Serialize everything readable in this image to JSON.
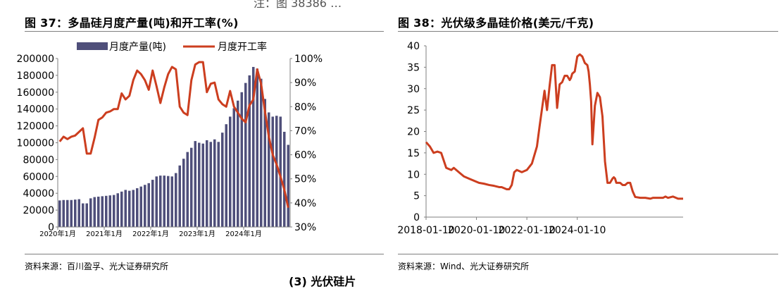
{
  "top_cut_text": "注：图 38386 …",
  "bottom_cut_text": "(3) 光伏硅片",
  "left": {
    "title": "图 37：多晶硅月度产量(吨)和开工率(%)",
    "source": "资料来源：百川盈孚、光大证券研究所"
  },
  "right": {
    "title": "图 38：光伏级多晶硅价格(美元/千克)",
    "source": "资料来源：Wind、光大证券研究所"
  },
  "colors": {
    "bar": "#4f4f7a",
    "line": "#cc3e1f",
    "axis": "#7f7f7f"
  },
  "chart_data": [
    {
      "type": "bar",
      "title": "图 37：多晶硅月度产量(吨)和开工率(%)",
      "legend_position": "top",
      "x_tick_labels": [
        "2020年1月",
        "2021年1月",
        "2022年1月",
        "2023年1月",
        "2024年1月"
      ],
      "y_left": {
        "ylim": [
          0,
          200000
        ],
        "ticks": [
          "0",
          "20000",
          "40000",
          "60000",
          "80000",
          "100000",
          "120000",
          "140000",
          "160000",
          "180000",
          "200000"
        ]
      },
      "y_right": {
        "ylim": [
          30,
          100
        ],
        "ticks": [
          "30%",
          "40%",
          "50%",
          "60%",
          "70%",
          "80%",
          "90%",
          "100%"
        ]
      },
      "series": [
        {
          "name": "月度产量(吨)",
          "type": "bar",
          "axis": "left",
          "values": [
            31500,
            32000,
            32000,
            32000,
            32500,
            33000,
            28000,
            28000,
            34000,
            35500,
            36000,
            36500,
            37000,
            37500,
            38000,
            40000,
            42000,
            44000,
            43000,
            44000,
            46000,
            48000,
            50000,
            52000,
            56000,
            60000,
            61000,
            61000,
            60500,
            60000,
            64000,
            73000,
            81000,
            89000,
            94000,
            102000,
            100000,
            99000,
            103000,
            101000,
            104000,
            101000,
            112000,
            122000,
            131000,
            141000,
            150000,
            160000,
            171000,
            180000,
            190000,
            188000,
            176000,
            152000,
            136000,
            131000,
            132000,
            131000,
            113000,
            97500
          ]
        },
        {
          "name": "月度开工率",
          "type": "line",
          "axis": "right",
          "values": [
            65.5,
            67.5,
            66.5,
            67.5,
            68,
            69.5,
            71,
            60.5,
            60.5,
            67,
            74.5,
            75.5,
            77.5,
            78,
            79,
            79,
            85.5,
            83,
            84.5,
            91,
            95,
            93.5,
            91,
            87,
            95,
            88.5,
            81.5,
            88,
            93.5,
            96.5,
            95.5,
            80,
            77.5,
            76.5,
            91,
            97.5,
            98.5,
            98.5,
            86,
            89.5,
            90,
            83,
            81,
            80,
            86.5,
            80,
            77.5,
            75,
            73.5,
            80.5,
            83,
            95.5,
            89.5,
            78,
            67.5,
            60,
            56,
            51,
            45.5,
            38
          ]
        }
      ]
    },
    {
      "type": "line",
      "title": "图 38：光伏级多晶硅价格(美元/千克)",
      "x_tick_labels": [
        "2018-01-10",
        "2020-01-10",
        "2022-01-10",
        "2024-01-10"
      ],
      "ylim": [
        0,
        40
      ],
      "y_ticks": [
        "0",
        "5",
        "10",
        "15",
        "20",
        "25",
        "30",
        "35",
        "40"
      ],
      "series": [
        {
          "name": "光伏级多晶硅价格",
          "x": [
            0,
            0.15,
            0.3,
            0.45,
            0.6,
            0.8,
            1.0,
            1.1,
            1.3,
            1.4,
            1.5,
            1.7,
            1.9,
            2.1,
            2.3,
            2.5,
            2.7,
            2.9,
            3.0,
            3.2,
            3.3,
            3.4,
            3.5,
            3.6,
            3.8,
            4.0,
            4.2,
            4.4,
            4.5,
            4.7,
            4.8,
            4.9,
            5.0,
            5.1,
            5.2,
            5.3,
            5.4,
            5.5,
            5.6,
            5.7,
            5.75,
            5.8,
            5.9,
            6.0,
            6.1,
            6.2,
            6.3,
            6.4,
            6.45,
            6.5,
            6.55,
            6.6,
            6.7,
            6.8,
            6.9,
            7.0,
            7.1,
            7.2,
            7.3,
            7.4,
            7.45,
            7.5,
            7.55,
            7.6,
            7.7,
            7.8,
            7.9,
            8.0,
            8.1,
            8.2,
            8.3,
            8.5,
            8.7,
            8.9,
            9.0,
            9.2,
            9.4,
            9.5,
            9.6,
            9.8,
            10.0,
            10.2
          ],
          "values": [
            17.5,
            16.5,
            15,
            15.3,
            15,
            11.5,
            11,
            11.5,
            10.5,
            10,
            9.5,
            9,
            8.5,
            8,
            7.8,
            7.5,
            7.3,
            7,
            7,
            6.5,
            6.5,
            7.5,
            10.5,
            11,
            10.5,
            11,
            12.5,
            16.5,
            21,
            29.5,
            25,
            30.5,
            35.5,
            35.5,
            25.5,
            31,
            31.5,
            33,
            33,
            32,
            32.5,
            33.5,
            34,
            37.5,
            38,
            37.5,
            36,
            35.5,
            34,
            31,
            27,
            17,
            26,
            29,
            28,
            23.5,
            13,
            8,
            8,
            9,
            9.3,
            9,
            8,
            8,
            8,
            7.5,
            7.5,
            8,
            8,
            6,
            4.7,
            4.5,
            4.5,
            4.3,
            4.5,
            4.5,
            4.5,
            4.8,
            4.5,
            4.8,
            4.3,
            4.3
          ]
        }
      ]
    }
  ]
}
